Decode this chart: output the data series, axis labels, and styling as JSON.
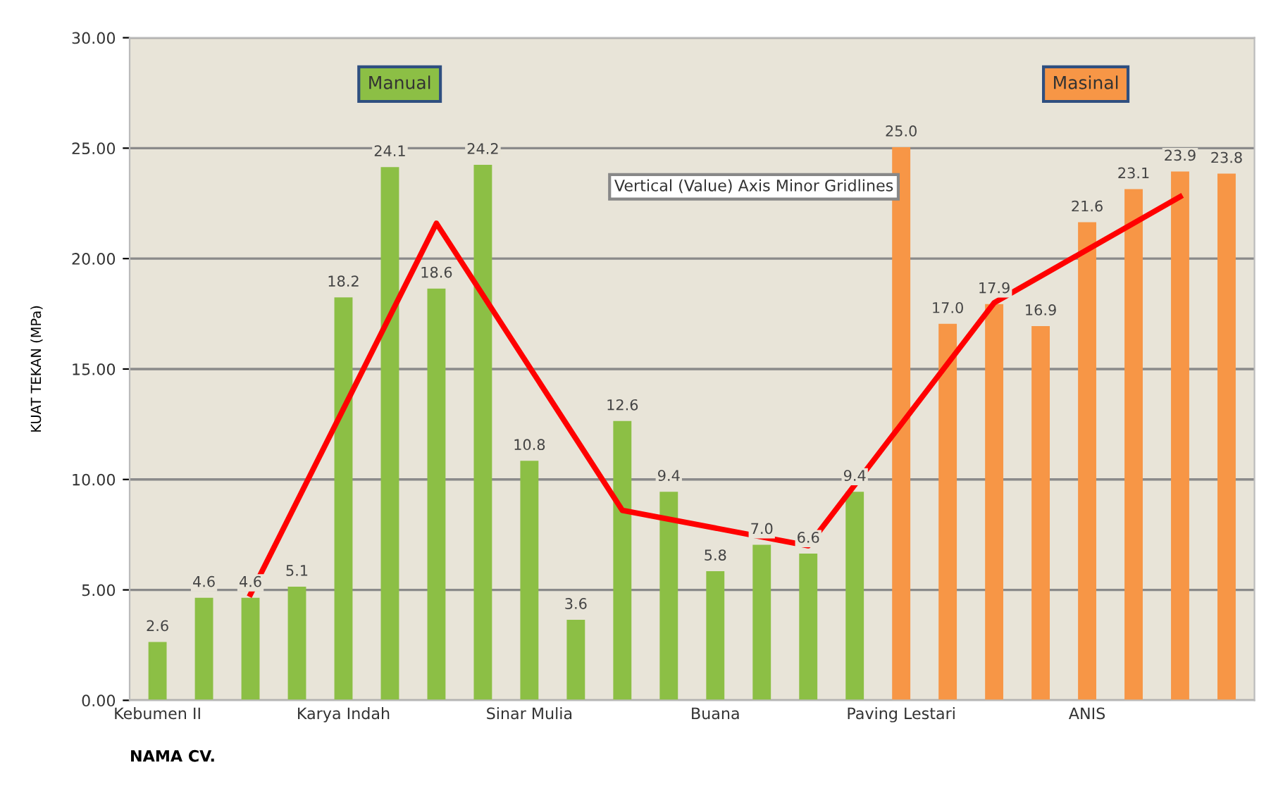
{
  "chart_data": {
    "type": "bar",
    "xlabel": "NAMA CV.",
    "ylabel": "KUAT TEKAN (MPa)",
    "categories": [
      "Kebumen II",
      null,
      null,
      null,
      "Karya Indah",
      null,
      null,
      null,
      "Sinar Mulia",
      null,
      null,
      null,
      "Buana",
      null,
      null,
      null,
      "Paving Lestari",
      null,
      null,
      null,
      "ANIS",
      null,
      null,
      null
    ],
    "series": [
      {
        "values": [
          2.6,
          4.6,
          4.6,
          5.1,
          18.2,
          24.1,
          18.6,
          24.2,
          10.8,
          3.6,
          12.6,
          9.4,
          5.8,
          7.0,
          6.6,
          9.4,
          25.0,
          17.0,
          17.9,
          16.9,
          21.6,
          23.1,
          23.9,
          23.8
        ],
        "colors": [
          "#8cbf45",
          "#8cbf45",
          "#8cbf45",
          "#8cbf45",
          "#8cbf45",
          "#8cbf45",
          "#8cbf45",
          "#8cbf45",
          "#8cbf45",
          "#8cbf45",
          "#8cbf45",
          "#8cbf45",
          "#8cbf45",
          "#8cbf45",
          "#8cbf45",
          "#8cbf45",
          "#f79646",
          "#f79646",
          "#f79646",
          "#f79646",
          "#f79646",
          "#f79646",
          "#f79646",
          "#f79646"
        ],
        "value_labels": [
          "2.6",
          "4.6",
          "4.6",
          "5.1",
          "18.2",
          "24.1",
          "18.6",
          "24.2",
          "10.8",
          "3.6",
          "12.6",
          "9.4",
          "5.8",
          "7.0",
          "6.6",
          "9.4",
          "25.0",
          "17.0",
          "17.9",
          "16.9",
          "21.6",
          "23.1",
          "23.9",
          "23.8"
        ]
      },
      {
        "type": "line",
        "color": "#ff0000",
        "values": [
          null,
          null,
          4.8,
          null,
          null,
          null,
          21.6,
          null,
          null,
          null,
          8.6,
          null,
          null,
          null,
          7.0,
          null,
          null,
          null,
          18.0,
          null,
          null,
          null,
          22.8,
          null
        ]
      }
    ],
    "ylim": [
      0,
      30
    ],
    "yticks": [
      {
        "value": 0,
        "label": "0.00"
      },
      {
        "value": 5,
        "label": "5.00"
      },
      {
        "value": 10,
        "label": "10.00"
      },
      {
        "value": 15,
        "label": "15.00"
      },
      {
        "value": 20,
        "label": "20.00"
      },
      {
        "value": 25,
        "label": "25.00"
      },
      {
        "value": 30,
        "label": "30.00"
      }
    ],
    "grid": "y",
    "annotations": [
      "Manual",
      "Masinal",
      "Vertical (Value) Axis Minor Gridlines"
    ]
  }
}
